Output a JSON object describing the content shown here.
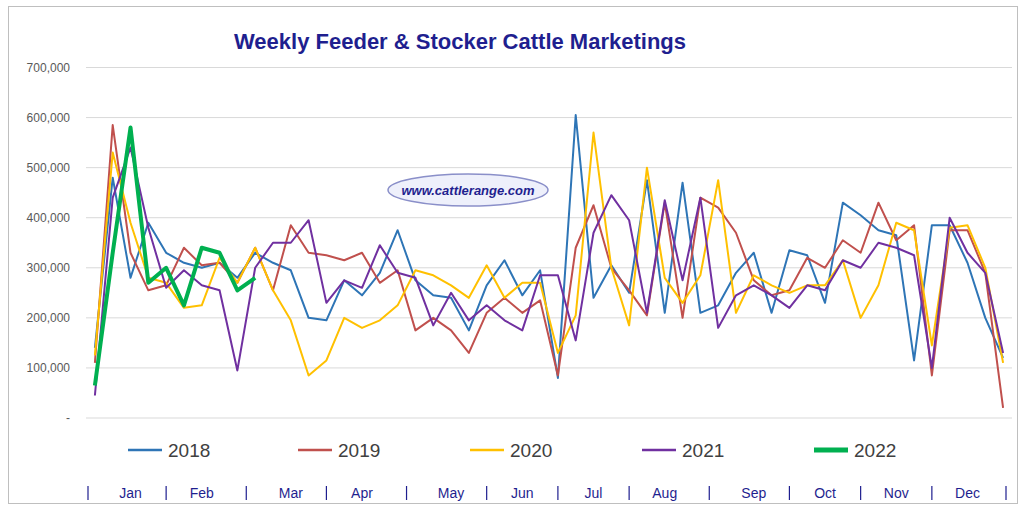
{
  "chart_data": {
    "type": "line",
    "title": "Weekly Feeder & Stocker Cattle Marketings",
    "watermark": "www.cattlerange.com",
    "categories": [
      null,
      null,
      "Jan",
      null,
      null,
      null,
      "Feb",
      null,
      null,
      null,
      null,
      "Mar",
      null,
      null,
      null,
      "Apr",
      null,
      null,
      null,
      null,
      "May",
      null,
      null,
      null,
      "Jun",
      null,
      null,
      null,
      "Jul",
      null,
      null,
      null,
      "Aug",
      null,
      null,
      null,
      null,
      "Sep",
      null,
      null,
      null,
      "Oct",
      null,
      null,
      null,
      "Nov",
      null,
      null,
      null,
      "Dec",
      null,
      null
    ],
    "series": [
      {
        "name": "2018",
        "color": "#2e75b6",
        "values": [
          140000,
          480000,
          280000,
          390000,
          330000,
          310000,
          300000,
          310000,
          280000,
          330000,
          310000,
          295000,
          200000,
          195000,
          275000,
          245000,
          290000,
          375000,
          275000,
          245000,
          240000,
          175000,
          265000,
          315000,
          245000,
          295000,
          80000,
          605000,
          240000,
          305000,
          250000,
          475000,
          210000,
          470000,
          210000,
          225000,
          290000,
          330000,
          210000,
          335000,
          325000,
          230000,
          430000,
          405000,
          375000,
          365000,
          115000,
          385000,
          385000,
          310000,
          200000,
          120000
        ]
      },
      {
        "name": "2019",
        "color": "#c0504d",
        "values": [
          110000,
          585000,
          330000,
          255000,
          265000,
          340000,
          305000,
          310000,
          270000,
          340000,
          255000,
          385000,
          330000,
          325000,
          315000,
          330000,
          270000,
          295000,
          175000,
          200000,
          175000,
          130000,
          210000,
          240000,
          210000,
          235000,
          85000,
          340000,
          425000,
          300000,
          255000,
          205000,
          430000,
          200000,
          440000,
          420000,
          370000,
          275000,
          245000,
          255000,
          320000,
          300000,
          355000,
          330000,
          430000,
          355000,
          385000,
          85000,
          375000,
          375000,
          290000,
          20000
        ]
      },
      {
        "name": "2020",
        "color": "#ffc000",
        "values": [
          125000,
          530000,
          390000,
          280000,
          270000,
          220000,
          225000,
          320000,
          270000,
          340000,
          255000,
          195000,
          85000,
          115000,
          200000,
          180000,
          195000,
          225000,
          295000,
          285000,
          265000,
          240000,
          305000,
          240000,
          270000,
          270000,
          130000,
          205000,
          570000,
          300000,
          185000,
          500000,
          280000,
          230000,
          285000,
          475000,
          210000,
          285000,
          265000,
          250000,
          265000,
          265000,
          315000,
          200000,
          265000,
          390000,
          375000,
          145000,
          380000,
          385000,
          300000,
          110000
        ]
      },
      {
        "name": "2021",
        "color": "#7030a0",
        "values": [
          45000,
          440000,
          540000,
          380000,
          260000,
          295000,
          265000,
          255000,
          95000,
          300000,
          350000,
          350000,
          395000,
          230000,
          275000,
          260000,
          345000,
          290000,
          280000,
          185000,
          250000,
          195000,
          225000,
          195000,
          175000,
          285000,
          285000,
          155000,
          370000,
          445000,
          395000,
          210000,
          435000,
          275000,
          440000,
          180000,
          245000,
          265000,
          245000,
          220000,
          265000,
          255000,
          315000,
          300000,
          350000,
          340000,
          325000,
          100000,
          400000,
          330000,
          290000,
          130000
        ]
      },
      {
        "name": "2022",
        "color": "#00b050",
        "values": [
          65000,
          330000,
          580000,
          270000,
          300000,
          225000,
          340000,
          330000,
          255000,
          280000,
          null,
          null,
          null,
          null,
          null,
          null,
          null,
          null,
          null,
          null,
          null,
          null,
          null,
          null,
          null,
          null,
          null,
          null,
          null,
          null,
          null,
          null,
          null,
          null,
          null,
          null,
          null,
          null,
          null,
          null,
          null,
          null,
          null,
          null,
          null,
          null,
          null,
          null,
          null,
          null,
          null,
          null
        ]
      }
    ],
    "ylim": [
      0,
      700000
    ],
    "yticks": [
      {
        "value": 0,
        "label": "-"
      },
      {
        "value": 100000,
        "label": "100,000"
      },
      {
        "value": 200000,
        "label": "200,000"
      },
      {
        "value": 300000,
        "label": "300,000"
      },
      {
        "value": 400000,
        "label": "400,000"
      },
      {
        "value": 500000,
        "label": "500,000"
      },
      {
        "value": 600000,
        "label": "600,000"
      },
      {
        "value": 700000,
        "label": "700,000"
      }
    ],
    "grid": true,
    "legend": "bottom"
  }
}
